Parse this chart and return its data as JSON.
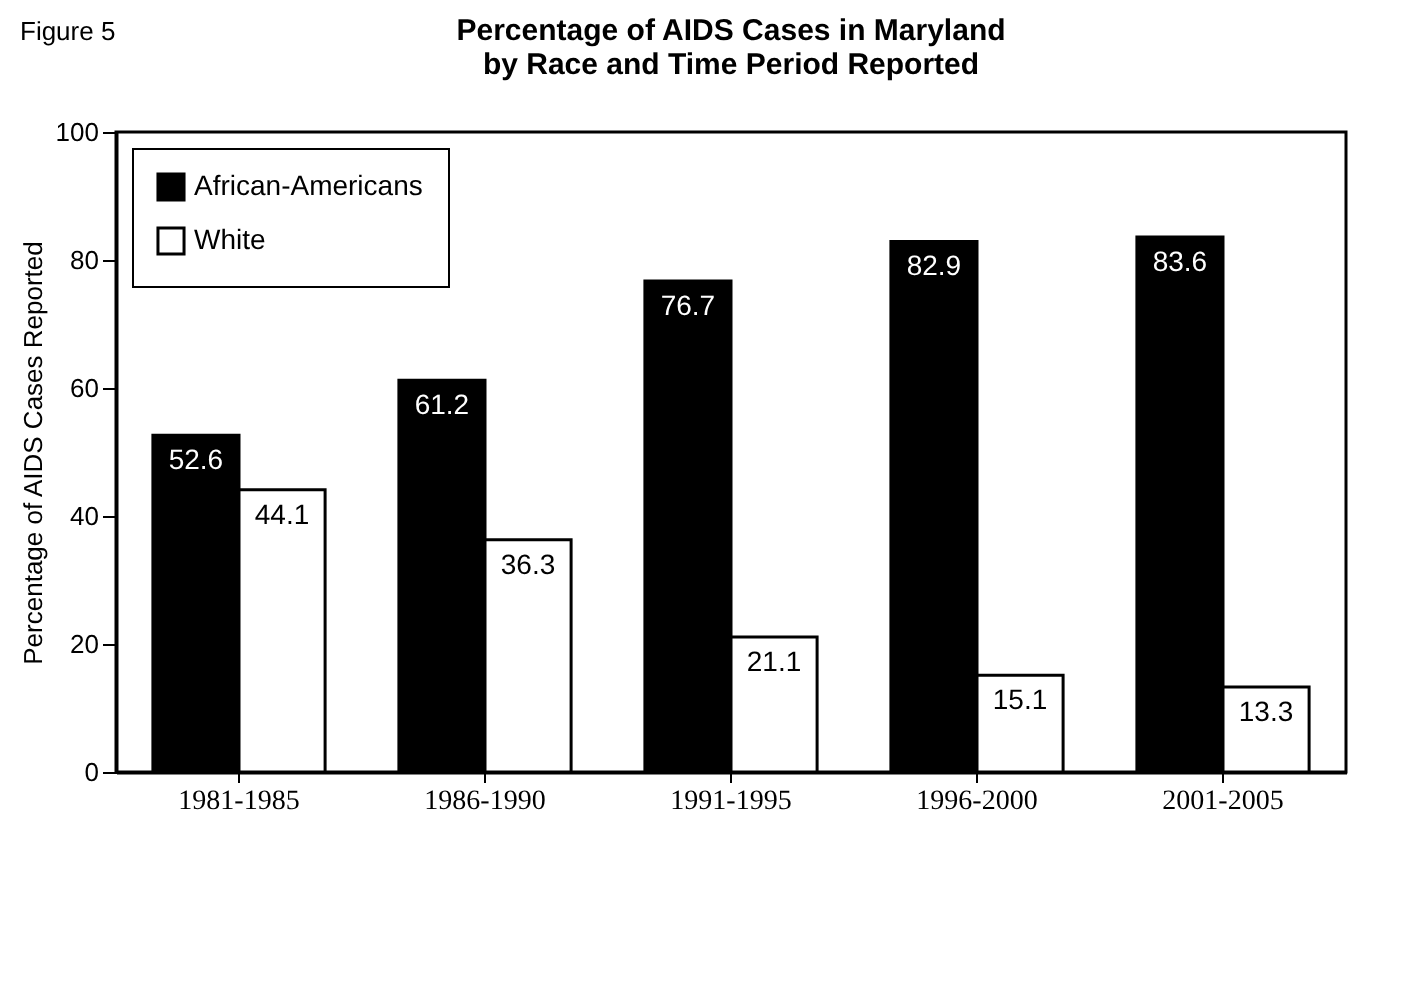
{
  "chart_data": {
    "type": "bar",
    "title": "Percentage of AIDS Cases in Maryland\nby Race and Time Period Reported",
    "ylabel": "Percentage of AIDS Cases Reported",
    "annotations": [
      "Figure 5"
    ],
    "categories": [
      "1981-1985",
      "1986-1990",
      "1991-1995",
      "1996-2000",
      "2001-2005"
    ],
    "series": [
      {
        "name": "African-Americans",
        "color": "#000000",
        "values": [
          52.6,
          61.2,
          76.7,
          82.9,
          83.6
        ]
      },
      {
        "name": "White",
        "color": "#ffffff",
        "values": [
          44.1,
          36.3,
          21.1,
          15.1,
          13.3
        ]
      }
    ],
    "ylim": [
      0,
      100
    ],
    "yticks": [
      0,
      20,
      40,
      60,
      80,
      100
    ],
    "grid": false,
    "legend": "top left",
    "data_labels": true
  }
}
